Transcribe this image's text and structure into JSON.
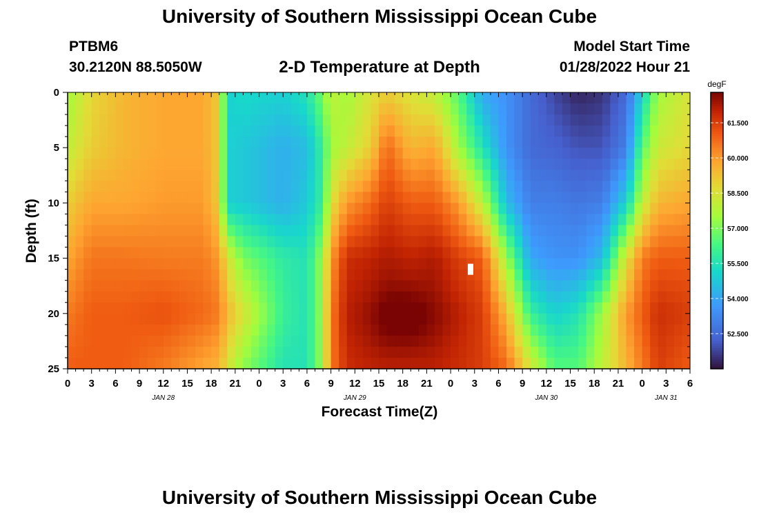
{
  "header": {
    "title": "University of Southern Mississippi Ocean Cube",
    "station": "PTBM6",
    "coords": "30.2120N  88.5050W",
    "plot_title": "2-D Temperature at Depth",
    "model_start_label": "Model Start Time",
    "model_start_value": "01/28/2022 Hour 21"
  },
  "footer": {
    "title": "University of Southern Mississippi Ocean Cube"
  },
  "chart_data": {
    "type": "heatmap",
    "title": "2-D Temperature at Depth",
    "xlabel": "Forecast Time(Z)",
    "ylabel": "Depth (ft)",
    "x_tick_labels": [
      "0",
      "3",
      "6",
      "9",
      "12",
      "15",
      "18",
      "21",
      "0",
      "3",
      "6",
      "9",
      "12",
      "15",
      "18",
      "21",
      "0",
      "3",
      "6",
      "9",
      "12",
      "15",
      "18",
      "21",
      "0",
      "3",
      "6"
    ],
    "x_range_hours": [
      0,
      78
    ],
    "date_labels": [
      {
        "label": "JAN 28",
        "hour": 12
      },
      {
        "label": "JAN 29",
        "hour": 36
      },
      {
        "label": "JAN 30",
        "hour": 60
      },
      {
        "label": "JAN 31",
        "hour": 75
      }
    ],
    "y_ticks": [
      0,
      5,
      10,
      15,
      20,
      25
    ],
    "ylim": [
      0,
      25
    ],
    "y_inverted": true,
    "colorbar": {
      "unit": "degF",
      "min": 51.0,
      "max": 62.8,
      "ticks": [
        "61.500",
        "60.000",
        "58.500",
        "57.000",
        "55.500",
        "54.000",
        "52.500"
      ],
      "colormap": "turbo"
    },
    "grid_resolution": {
      "columns": 78,
      "rows": 25
    },
    "profiles": [
      {
        "hour": 0,
        "temps_surface_to_25ft": [
          57.5,
          58.0,
          59.0,
          59.8,
          60.5,
          61.0
        ]
      },
      {
        "hour": 3,
        "temps_surface_to_25ft": [
          58.8,
          59.0,
          59.8,
          60.6,
          61.0,
          61.0
        ]
      },
      {
        "hour": 7,
        "temps_surface_to_25ft": [
          59.5,
          59.5,
          59.8,
          60.6,
          61.0,
          61.0
        ]
      },
      {
        "hour": 12,
        "temps_surface_to_25ft": [
          59.8,
          59.8,
          60.0,
          60.5,
          61.2,
          60.5
        ]
      },
      {
        "hour": 17,
        "temps_surface_to_25ft": [
          59.8,
          59.8,
          60.0,
          60.5,
          60.8,
          59.8
        ]
      },
      {
        "hour": 19,
        "temps_surface_to_25ft": [
          59.0,
          59.0,
          59.0,
          60.0,
          60.5,
          59.5
        ]
      },
      {
        "hour": 20,
        "temps_surface_to_25ft": [
          55.0,
          55.0,
          55.0,
          58.5,
          59.5,
          58.5
        ]
      },
      {
        "hour": 22,
        "temps_surface_to_25ft": [
          55.2,
          54.8,
          54.8,
          57.0,
          58.5,
          57.2
        ]
      },
      {
        "hour": 27,
        "temps_surface_to_25ft": [
          55.0,
          54.2,
          54.2,
          55.8,
          56.0,
          55.5
        ]
      },
      {
        "hour": 30,
        "temps_surface_to_25ft": [
          55.5,
          54.5,
          54.8,
          55.5,
          55.5,
          55.5
        ]
      },
      {
        "hour": 32,
        "temps_surface_to_25ft": [
          57.0,
          56.0,
          56.0,
          57.5,
          57.5,
          57.5
        ]
      },
      {
        "hour": 33,
        "temps_surface_to_25ft": [
          58.0,
          57.5,
          58.5,
          60.0,
          60.5,
          60.5
        ]
      },
      {
        "hour": 35,
        "temps_surface_to_25ft": [
          57.5,
          58.0,
          60.0,
          61.8,
          62.0,
          61.8
        ]
      },
      {
        "hour": 38,
        "temps_surface_to_25ft": [
          58.5,
          59.0,
          60.8,
          62.0,
          62.2,
          62.0
        ]
      },
      {
        "hour": 40,
        "temps_surface_to_25ft": [
          59.0,
          60.8,
          61.5,
          62.2,
          62.5,
          62.0
        ]
      },
      {
        "hour": 43,
        "temps_surface_to_25ft": [
          58.5,
          59.5,
          61.0,
          62.0,
          62.5,
          62.0
        ]
      },
      {
        "hour": 46,
        "temps_surface_to_25ft": [
          58.0,
          59.8,
          61.0,
          62.2,
          62.3,
          62.0
        ]
      },
      {
        "hour": 49,
        "temps_surface_to_25ft": [
          56.5,
          57.5,
          60.0,
          61.5,
          62.0,
          61.8
        ]
      },
      {
        "hour": 52,
        "temps_surface_to_25ft": [
          54.0,
          55.5,
          58.0,
          61.0,
          61.5,
          61.5
        ]
      },
      {
        "hour": 55,
        "temps_surface_to_25ft": [
          53.5,
          53.5,
          54.5,
          57.5,
          59.5,
          60.8
        ]
      },
      {
        "hour": 58,
        "temps_surface_to_25ft": [
          52.5,
          52.5,
          53.0,
          54.0,
          56.0,
          58.5
        ]
      },
      {
        "hour": 61,
        "temps_surface_to_25ft": [
          51.8,
          52.3,
          53.0,
          53.5,
          55.0,
          56.5
        ]
      },
      {
        "hour": 64,
        "temps_surface_to_25ft": [
          51.3,
          52.0,
          52.8,
          53.5,
          55.5,
          56.5
        ]
      },
      {
        "hour": 67,
        "temps_surface_to_25ft": [
          51.5,
          52.0,
          53.0,
          54.5,
          57.5,
          58.0
        ]
      },
      {
        "hour": 70,
        "temps_surface_to_25ft": [
          52.5,
          53.0,
          55.0,
          58.5,
          60.0,
          59.5
        ]
      },
      {
        "hour": 72,
        "temps_surface_to_25ft": [
          55.0,
          56.5,
          58.0,
          60.5,
          61.0,
          60.5
        ]
      },
      {
        "hour": 74,
        "temps_surface_to_25ft": [
          57.5,
          58.2,
          59.5,
          61.0,
          61.8,
          61.5
        ]
      },
      {
        "hour": 78,
        "temps_surface_to_25ft": [
          58.5,
          58.8,
          59.8,
          61.0,
          61.5,
          61.0
        ]
      }
    ],
    "warm_core": {
      "hour": 42,
      "depth_ft": 20.5,
      "delta_degF": 0.6
    },
    "missing_cell": {
      "hour": 50.5,
      "depth_ft": 16
    }
  }
}
